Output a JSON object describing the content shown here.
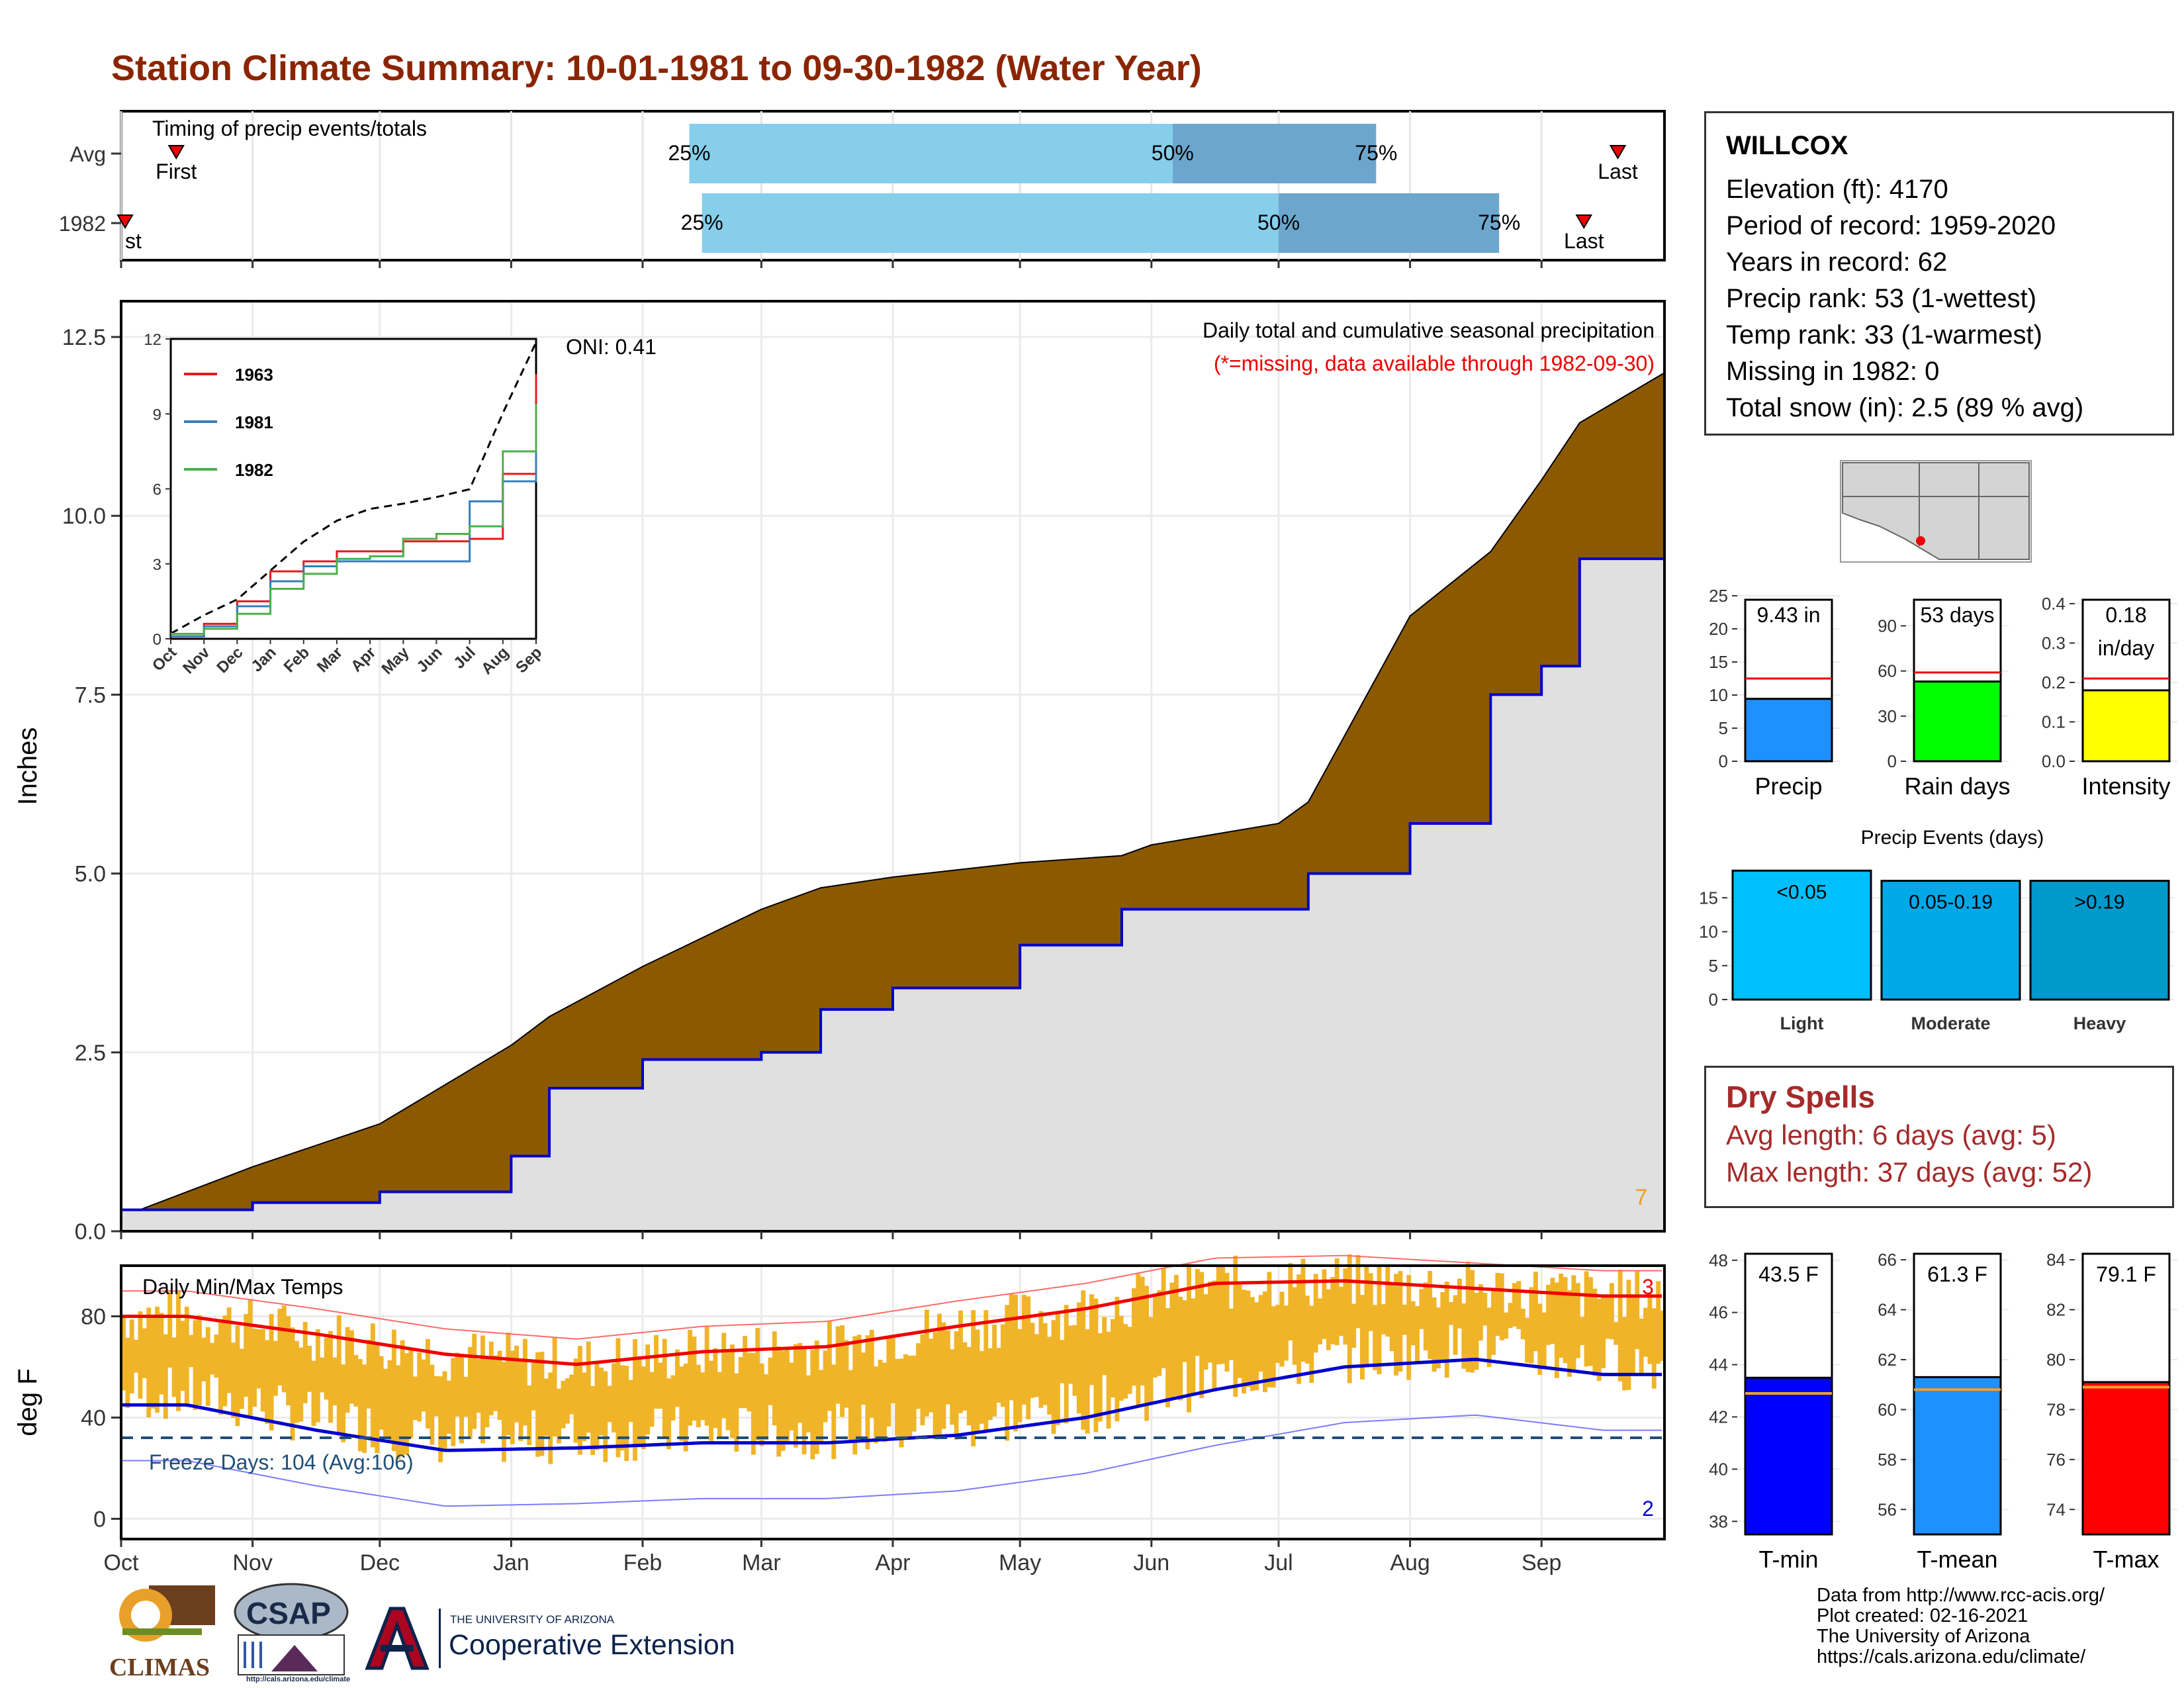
{
  "title": "Station Climate Summary: 10-01-1981 to 09-30-1982 (Water Year)",
  "station": {
    "name": "WILLCOX",
    "lines": [
      "Elevation (ft): 4170",
      "Period of record: 1959-2020",
      "Years in record: 62",
      "Precip rank: 53 (1-wettest)",
      "Temp rank: 33 (1-warmest)",
      "Missing in 1982: 0",
      "Total snow (in): 2.5 (89 % avg)"
    ]
  },
  "timing_panel": {
    "label": "Timing of precip events/totals",
    "rows": [
      {
        "label": "Avg",
        "q25": "25%",
        "q50": "50%",
        "q75": "75%",
        "first": "First",
        "last": "Last"
      },
      {
        "label": "1982",
        "q25": "25%",
        "q50": "50%",
        "q75": "75%",
        "first": "First",
        "last": "Last"
      }
    ]
  },
  "precip_panel": {
    "ylabel": "Inches",
    "note1": "Daily total and cumulative seasonal precipitation",
    "note2": "(*=missing, data available through 1982-09-30)",
    "count_label": "7",
    "oni": "ONI: 0.41",
    "yticks": [
      "0.0",
      "2.5",
      "5.0",
      "7.5",
      "10.0",
      "12.5"
    ]
  },
  "temp_panel": {
    "title": "Daily Min/Max Temps",
    "ylabel": "deg F",
    "freeze": "Freeze Days: 104 (Avg:106)",
    "max_count": "3",
    "min_count": "2",
    "yticks": [
      "0",
      "40",
      "80"
    ]
  },
  "months": [
    "Oct",
    "Nov",
    "Dec",
    "Jan",
    "Feb",
    "Mar",
    "Apr",
    "May",
    "Jun",
    "Jul",
    "Aug",
    "Sep"
  ],
  "inset": {
    "yticks": [
      "0",
      "3",
      "6",
      "9",
      "12"
    ],
    "months": [
      "Oct",
      "Nov",
      "Dec",
      "Jan",
      "Feb",
      "Mar",
      "Apr",
      "May",
      "Jun",
      "Jul",
      "Aug",
      "Sep"
    ],
    "legend": [
      "1963",
      "1981",
      "1982"
    ]
  },
  "small_bars": {
    "precip": {
      "value_label": "9.43 in",
      "xlabel": "Precip",
      "yticks": [
        "0",
        "5",
        "10",
        "15",
        "20",
        "25"
      ]
    },
    "raindays": {
      "value_label": "53 days",
      "xlabel": "Rain days",
      "yticks": [
        "0",
        "30",
        "60",
        "90"
      ]
    },
    "intensity": {
      "value_label1": "0.18",
      "value_label2": "in/day",
      "xlabel": "Intensity",
      "yticks": [
        "0.0",
        "0.1",
        "0.2",
        "0.3",
        "0.4"
      ]
    }
  },
  "events": {
    "title": "Precip Events (days)",
    "bars": [
      {
        "label": "<0.05",
        "cat": "Light"
      },
      {
        "label": "0.05-0.19",
        "cat": "Moderate"
      },
      {
        "label": ">0.19",
        "cat": "Heavy"
      }
    ],
    "yticks": [
      "0",
      "5",
      "10",
      "15"
    ]
  },
  "dry_spells": {
    "title": "Dry Spells",
    "avg": "Avg length: 6 days (avg: 5)",
    "max": "Max length: 37 days (avg: 52)"
  },
  "temp_bars": {
    "tmin": {
      "label": "43.5 F",
      "xlabel": "T-min",
      "yticks": [
        "38",
        "40",
        "42",
        "44",
        "46",
        "48"
      ]
    },
    "tmean": {
      "label": "61.3 F",
      "xlabel": "T-mean",
      "yticks": [
        "56",
        "58",
        "60",
        "62",
        "64",
        "66"
      ]
    },
    "tmax": {
      "label": "79.1 F",
      "xlabel": "T-max",
      "yticks": [
        "74",
        "76",
        "78",
        "80",
        "82",
        "84"
      ]
    }
  },
  "credits": [
    "Data from http://www.rcc-acis.org/",
    "Plot created: 02-16-2021",
    "The University of Arizona",
    "https://cals.arizona.edu/climate/"
  ],
  "logos": {
    "climas": "CLIMAS",
    "csap": "CSAP",
    "csap_url": "http://cals.arizona.edu/climate",
    "ua_small": "THE UNIVERSITY OF ARIZONA",
    "ua_big": "Cooperative Extension"
  },
  "colors": {
    "title": "#8B2500",
    "cum_fill": "#8B5A00",
    "area_fill": "#E0E0E0",
    "precip_line": "#0000CC",
    "bar_light": "#87CEEB",
    "bar_dark": "#6CA6CD",
    "temp_bars": "#F0B428"
  },
  "chart_data": [
    {
      "type": "bar",
      "title": "Timing of precip events/totals",
      "categories": [
        "Avg",
        "1982"
      ],
      "series": [
        {
          "name": "25%",
          "values": [
            "1982-02-12",
            "1982-02-15"
          ]
        },
        {
          "name": "50%",
          "values": [
            "1982-06-06",
            "1982-07-01"
          ]
        },
        {
          "name": "75%",
          "values": [
            "1982-07-24",
            "1982-08-22"
          ]
        }
      ],
      "first": [
        "1981-10-14",
        "1981-09-30"
      ],
      "last": [
        "1982-09-19",
        "1982-09-11"
      ]
    },
    {
      "type": "area",
      "ylabel": "Inches",
      "x": [
        "1981-10-01",
        "1981-11-01",
        "1981-12-01",
        "1982-01-01",
        "1982-01-10",
        "1982-02-01",
        "1982-03-01",
        "1982-03-15",
        "1982-04-01",
        "1982-05-01",
        "1982-05-25",
        "1982-06-01",
        "1982-07-01",
        "1982-07-08",
        "1982-08-01",
        "1982-08-20",
        "1982-09-01",
        "1982-09-10",
        "1982-09-30"
      ],
      "series": [
        {
          "name": "cumulative average",
          "values": [
            0.2,
            0.9,
            1.5,
            2.6,
            3.0,
            3.7,
            4.5,
            4.8,
            4.95,
            5.15,
            5.25,
            5.4,
            5.7,
            6.0,
            8.6,
            9.5,
            10.5,
            11.3,
            12.0
          ]
        },
        {
          "name": "cumulative 1982",
          "values": [
            0.3,
            0.4,
            0.55,
            1.05,
            2.0,
            2.4,
            2.5,
            3.1,
            3.4,
            4.0,
            4.5,
            4.5,
            4.5,
            5.0,
            5.7,
            7.5,
            7.9,
            9.4,
            9.43
          ]
        }
      ],
      "ylim": [
        0,
        13.0
      ]
    },
    {
      "type": "line",
      "ylabel": "deg F",
      "x": [
        "Oct",
        "Nov",
        "Dec",
        "Jan",
        "Feb",
        "Mar",
        "Apr",
        "May",
        "Jun",
        "Jul",
        "Aug",
        "Sep"
      ],
      "series": [
        {
          "name": "avg max",
          "values": [
            80,
            73,
            65,
            61,
            66,
            68,
            76,
            83,
            93,
            94,
            91,
            88
          ]
        },
        {
          "name": "avg min",
          "values": [
            45,
            35,
            27,
            28,
            30,
            30,
            33,
            40,
            51,
            60,
            63,
            57
          ]
        }
      ],
      "freeze_line": 32,
      "ylim": [
        -8,
        100
      ]
    },
    {
      "type": "line",
      "yticks": [
        0,
        3,
        6,
        9,
        12
      ],
      "x": [
        "Oct",
        "Nov",
        "Dec",
        "Jan",
        "Feb",
        "Mar",
        "Apr",
        "May",
        "Jun",
        "Jul",
        "Aug",
        "Sep"
      ],
      "series": [
        {
          "name": "1963",
          "values": [
            0.1,
            0.6,
            1.5,
            2.7,
            3.1,
            3.5,
            3.5,
            3.9,
            3.9,
            4.0,
            6.6,
            10.6
          ]
        },
        {
          "name": "1981",
          "values": [
            0.1,
            0.5,
            1.3,
            2.3,
            2.9,
            3.1,
            3.1,
            3.1,
            3.1,
            5.5,
            6.3,
            8.6
          ]
        },
        {
          "name": "1982",
          "values": [
            0.2,
            0.4,
            1.0,
            2.0,
            2.6,
            3.2,
            3.3,
            4.0,
            4.2,
            4.5,
            7.5,
            9.4
          ]
        }
      ]
    },
    {
      "type": "bar",
      "categories": [
        "Precip",
        "Rain days",
        "Intensity"
      ],
      "values": [
        9.43,
        53,
        0.18
      ],
      "averages": [
        12.5,
        59,
        0.21
      ]
    },
    {
      "type": "bar",
      "title": "Precip Events (days)",
      "categories": [
        "Light",
        "Moderate",
        "Heavy"
      ],
      "values": [
        19,
        17.5,
        17.5
      ],
      "ylim": [
        0,
        19
      ]
    },
    {
      "type": "bar",
      "categories": [
        "T-min",
        "T-mean",
        "T-max"
      ],
      "values": [
        43.5,
        61.3,
        79.1
      ],
      "averages": [
        42.9,
        60.8,
        78.9
      ]
    }
  ]
}
